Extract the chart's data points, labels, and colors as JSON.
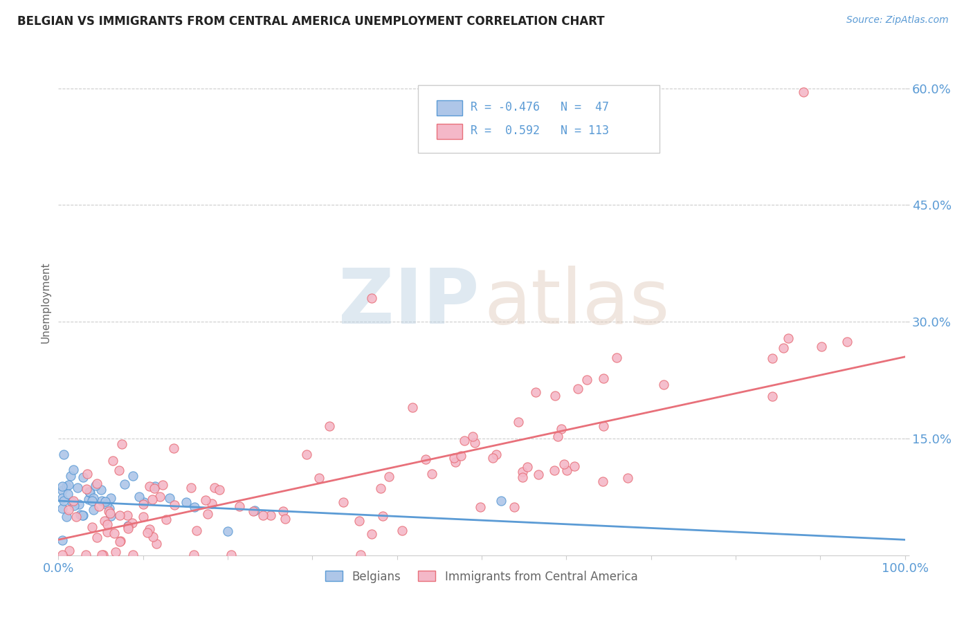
{
  "title": "BELGIAN VS IMMIGRANTS FROM CENTRAL AMERICA UNEMPLOYMENT CORRELATION CHART",
  "source_text": "Source: ZipAtlas.com",
  "ylabel": "Unemployment",
  "xlim": [
    0,
    1.0
  ],
  "ylim": [
    0,
    0.65
  ],
  "yticks": [
    0.0,
    0.15,
    0.3,
    0.45,
    0.6
  ],
  "xticks": [
    0.0,
    0.1,
    0.2,
    0.3,
    0.4,
    0.5,
    0.6,
    0.7,
    0.8,
    0.9,
    1.0
  ],
  "xtick_labels": [
    "0.0%",
    "",
    "",
    "",
    "",
    "",
    "",
    "",
    "",
    "",
    "100.0%"
  ],
  "ytick_labels": [
    "",
    "15.0%",
    "30.0%",
    "45.0%",
    "60.0%"
  ],
  "belgian_color": "#aec6e8",
  "belgian_edge_color": "#5b9bd5",
  "ca_color": "#f4b8c8",
  "ca_edge_color": "#e8707a",
  "trend_belgian_color": "#5b9bd5",
  "trend_ca_color": "#e8707a",
  "R_belgian": -0.476,
  "N_belgian": 47,
  "R_ca": 0.592,
  "N_ca": 113,
  "legend_labels": [
    "Belgians",
    "Immigrants from Central America"
  ],
  "background_color": "#ffffff",
  "grid_color": "#cccccc",
  "tick_color": "#5b9bd5",
  "axis_label_color": "#666666",
  "title_color": "#222222",
  "trend_bel_start_y": 0.07,
  "trend_bel_end_y": 0.02,
  "trend_ca_start_y": 0.02,
  "trend_ca_end_y": 0.255
}
